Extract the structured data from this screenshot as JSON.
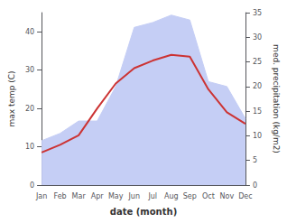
{
  "chart_data": {
    "type": "line",
    "xlabel": "date (month)",
    "ylabel": "max temp (C)",
    "y2label": "med. precipitation (kg/m2)",
    "categories": [
      "Jan",
      "Feb",
      "Mar",
      "Apr",
      "May",
      "Jun",
      "Jul",
      "Aug",
      "Sep",
      "Oct",
      "Nov",
      "Dec"
    ],
    "series": [
      {
        "type": "area",
        "axis": "y2",
        "color": "#c5cef5",
        "values": [
          9.0,
          10.5,
          13.0,
          13.0,
          20.0,
          32.0,
          33.0,
          34.5,
          33.5,
          21.0,
          20.0,
          13.5
        ]
      },
      {
        "type": "line",
        "color": "#cc3333",
        "values": [
          8.5,
          10.5,
          13.0,
          20.0,
          26.5,
          30.5,
          32.5,
          34.0,
          33.5,
          25.0,
          19.0,
          16.0
        ]
      }
    ],
    "ylim": [
      0,
      45
    ],
    "yticks": [
      0,
      10,
      20,
      30,
      40
    ],
    "y2lim": [
      0,
      35
    ],
    "y2ticks": [
      0,
      5,
      10,
      15,
      20,
      25,
      30,
      35
    ],
    "grid": false
  }
}
